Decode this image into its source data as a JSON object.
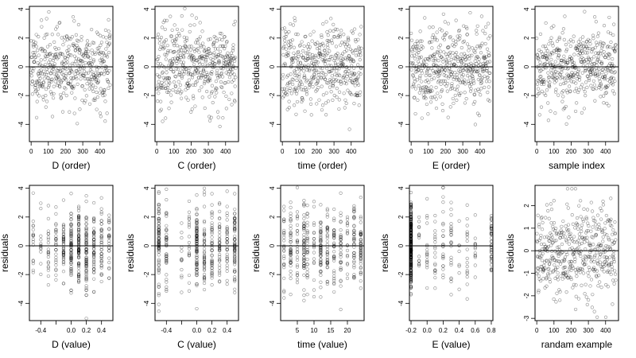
{
  "chart_data": [
    {
      "type": "scatter",
      "xlabel": "D (order)",
      "ylabel": "residuals",
      "xlim": [
        -10,
        475
      ],
      "ylim": [
        -5.2,
        4.2
      ],
      "xticks": [
        0,
        100,
        200,
        300,
        400
      ],
      "yticks": [
        -4,
        -2,
        0,
        2,
        4
      ],
      "hline": 0,
      "grid": false,
      "x_kind": "index",
      "n": 460,
      "seed": 11
    },
    {
      "type": "scatter",
      "xlabel": "C (order)",
      "ylabel": "residuals",
      "xlim": [
        -10,
        475
      ],
      "ylim": [
        -5.2,
        4.2
      ],
      "xticks": [
        0,
        100,
        200,
        300,
        400
      ],
      "yticks": [
        -4,
        -2,
        0,
        2,
        4
      ],
      "hline": 0,
      "grid": false,
      "x_kind": "index",
      "n": 460,
      "seed": 23
    },
    {
      "type": "scatter",
      "xlabel": "time (order)",
      "ylabel": "residuals",
      "xlim": [
        -10,
        475
      ],
      "ylim": [
        -5.2,
        4.2
      ],
      "xticks": [
        0,
        100,
        200,
        300,
        400
      ],
      "yticks": [
        -4,
        -2,
        0,
        2,
        4
      ],
      "hline": 0,
      "grid": false,
      "x_kind": "index",
      "n": 460,
      "seed": 37
    },
    {
      "type": "scatter",
      "xlabel": "E (order)",
      "ylabel": "residuals",
      "xlim": [
        -10,
        475
      ],
      "ylim": [
        -5.2,
        4.2
      ],
      "xticks": [
        0,
        100,
        200,
        300,
        400
      ],
      "yticks": [
        -4,
        -2,
        0,
        2,
        4
      ],
      "hline": 0,
      "grid": false,
      "x_kind": "index",
      "n": 460,
      "seed": 41
    },
    {
      "type": "scatter",
      "xlabel": "sample index",
      "ylabel": "residuals",
      "xlim": [
        -10,
        475
      ],
      "ylim": [
        -5.2,
        4.2
      ],
      "xticks": [
        0,
        100,
        200,
        300,
        400
      ],
      "yticks": [
        -4,
        -2,
        0,
        2,
        4
      ],
      "hline": 0,
      "grid": false,
      "x_kind": "index",
      "n": 460,
      "seed": 53
    },
    {
      "type": "scatter",
      "xlabel": "D (value)",
      "ylabel": "residuals",
      "xlim": [
        -0.55,
        0.55
      ],
      "ylim": [
        -5.2,
        4.2
      ],
      "xticks": [
        -0.4,
        -0.2,
        0,
        0.2,
        0.4
      ],
      "xtick_labels": [
        "-0.4",
        "",
        "0.0",
        "0.2",
        "0.4"
      ],
      "yticks": [
        -4,
        -2,
        0,
        2,
        4
      ],
      "hline": 0,
      "grid": false,
      "x_kind": "levels",
      "x_levels": [
        -0.5,
        -0.4,
        -0.3,
        -0.2,
        -0.1,
        0.0,
        0.1,
        0.2,
        0.3,
        0.4,
        0.5
      ],
      "level_weights": [
        1,
        1,
        1,
        2,
        3,
        4,
        5,
        4,
        3,
        2,
        1
      ],
      "n": 460,
      "seed": 61
    },
    {
      "type": "scatter",
      "xlabel": "C (value)",
      "ylabel": "residuals",
      "xlim": [
        -0.55,
        0.55
      ],
      "ylim": [
        -5.2,
        4.2
      ],
      "xticks": [
        -0.4,
        -0.2,
        0,
        0.2,
        0.4
      ],
      "xtick_labels": [
        "-0.4",
        "",
        "0.0",
        "0.2",
        "0.4"
      ],
      "yticks": [
        -4,
        -2,
        0,
        2,
        4
      ],
      "hline": 0,
      "grid": false,
      "x_kind": "levels",
      "x_levels": [
        -0.5,
        -0.4,
        -0.2,
        -0.1,
        0.0,
        0.1,
        0.2,
        0.3,
        0.4,
        0.5
      ],
      "level_weights": [
        3,
        2,
        1,
        1,
        6,
        3,
        3,
        2,
        2,
        3
      ],
      "n": 460,
      "seed": 67
    },
    {
      "type": "scatter",
      "xlabel": "time (value)",
      "ylabel": "residuals",
      "xlim": [
        0,
        25
      ],
      "ylim": [
        -5.2,
        4.2
      ],
      "xticks": [
        5,
        10,
        15,
        20
      ],
      "yticks": [
        -4,
        -2,
        0,
        2,
        4
      ],
      "hline": 0,
      "grid": false,
      "x_kind": "levels",
      "x_levels": [
        1,
        3,
        5,
        7,
        8,
        10,
        12,
        14,
        16,
        18,
        20,
        22,
        24
      ],
      "level_weights": [
        2,
        2,
        2,
        3,
        2,
        2,
        4,
        2,
        2,
        2,
        2,
        2,
        3
      ],
      "n": 460,
      "seed": 71
    },
    {
      "type": "scatter",
      "xlabel": "E (value)",
      "ylabel": "residuals",
      "xlim": [
        -0.22,
        0.82
      ],
      "ylim": [
        -5.2,
        4.2
      ],
      "xticks": [
        -0.2,
        0,
        0.2,
        0.4,
        0.6,
        0.8
      ],
      "xtick_labels": [
        "-0.2",
        "0.0",
        "0.2",
        "0.4",
        "0.6",
        "0.8"
      ],
      "yticks": [
        -4,
        -2,
        0,
        2,
        4
      ],
      "hline": 0,
      "grid": false,
      "x_kind": "levels",
      "x_levels": [
        -0.2,
        -0.1,
        0.0,
        0.1,
        0.2,
        0.3,
        0.4,
        0.5,
        0.6,
        0.8
      ],
      "level_weights": [
        30,
        2,
        2,
        2,
        3,
        2,
        1,
        2,
        1,
        4
      ],
      "n": 460,
      "seed": 79
    },
    {
      "type": "scatter",
      "xlabel": "randam example",
      "ylabel": "residuals",
      "xlim": [
        -10,
        475
      ],
      "ylim": [
        -3.1,
        2.9
      ],
      "xticks": [
        0,
        100,
        200,
        300,
        400
      ],
      "yticks": [
        -3,
        -2,
        -1,
        0,
        1,
        2
      ],
      "hline": 0,
      "grid": false,
      "x_kind": "index",
      "n": 460,
      "seed": 89
    }
  ]
}
